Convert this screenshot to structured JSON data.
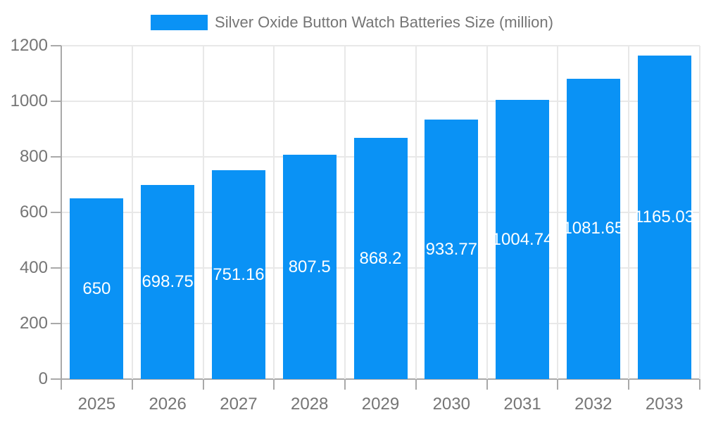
{
  "legend": {
    "label": "Silver Oxide Button Watch Batteries Size (million)"
  },
  "chart_data": {
    "type": "bar",
    "title": "Silver Oxide Button Watch Batteries Size (million)",
    "categories": [
      "2025",
      "2026",
      "2027",
      "2028",
      "2029",
      "2030",
      "2031",
      "2032",
      "2033"
    ],
    "values": [
      650,
      698.75,
      751.16,
      807.5,
      868.2,
      933.77,
      1004.74,
      1081.65,
      1165.03
    ],
    "value_labels": [
      "650",
      "698.75",
      "751.16",
      "807.5",
      "868.2",
      "933.77",
      "1004.74",
      "1081.65",
      "1165.03"
    ],
    "xlabel": "",
    "ylabel": "",
    "ylim": [
      0,
      1200
    ],
    "yticks": [
      0,
      200,
      400,
      600,
      800,
      1000,
      1200
    ],
    "grid": true,
    "legend_position": "top-center",
    "value_label_position": "inside-center",
    "colors": {
      "bar": "#0a92f5",
      "grid": "#e8e8e8",
      "axis": "#a9a9a9",
      "tick_text": "#757575",
      "title_text": "#757575",
      "bar_label": "#ffffff",
      "background": "#ffffff"
    }
  }
}
